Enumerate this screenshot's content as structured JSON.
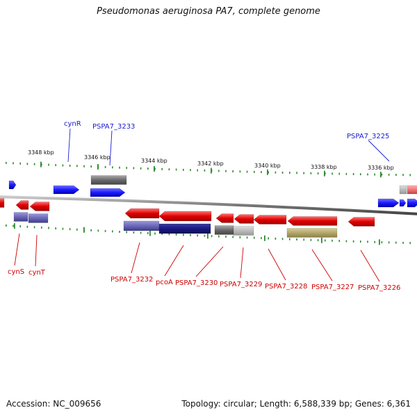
{
  "title": "Pseudomonas aeruginosa PA7, complete genome",
  "footer": {
    "accession": "Accession: NC_009656",
    "summary": "Topology: circular; Length: 6,588,339 bp; Genes: 6,361"
  },
  "colors": {
    "forward_gene": "#1a1aff",
    "reverse_gene": "#e00000",
    "cds_dark": "#1a1a80",
    "cds_light": "#6a68b8",
    "cds_gray": "#777777",
    "cds_olive": "#b3a86a",
    "tick": "#2e8b2e",
    "backbone": "#7a7a7a"
  },
  "scale_labels": [
    "3348 kbp",
    "3346 kbp",
    "3344 kbp",
    "3342 kbp",
    "3340 kbp",
    "3338 kbp",
    "3336 kbp"
  ],
  "top_labels": [
    "cynR",
    "PSPA7_3233",
    "PSPA7_3225"
  ],
  "bottom_labels": [
    "cynS",
    "cynT",
    "PSPA7_3232",
    "pcoA",
    "PSPA7_3230",
    "PSPA7_3229",
    "PSPA7_3228",
    "PSPA7_3227",
    "PSPA7_3226"
  ]
}
